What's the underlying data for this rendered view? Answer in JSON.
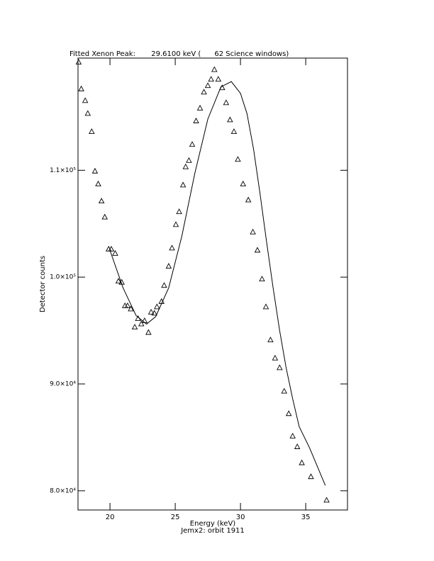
{
  "chart_data": {
    "type": "scatter",
    "title": "Fitted Xenon Peak:       29.6100 keV (      62 Science windows)",
    "x_label": "Energy (keV)",
    "subtitle": "Jemx2: orbit 1911",
    "y_label": "Detector counts",
    "xlim": [
      17.55,
      38.2
    ],
    "ylim": [
      78200,
      120500
    ],
    "xticks": [
      20,
      25,
      30,
      35
    ],
    "yticks": [
      {
        "value": 80000,
        "label": "8.0×10⁴"
      },
      {
        "value": 90000,
        "label": "9.0×10⁴"
      },
      {
        "value": 100000,
        "label": "1.0×10⁵"
      },
      {
        "value": 110000,
        "label": "1.1×10⁵"
      }
    ],
    "color": "#000000",
    "series": [
      {
        "mode": "markers",
        "x": [
          17.6,
          17.8,
          18.1,
          18.3,
          18.6,
          18.85,
          19.1,
          19.35,
          19.6,
          19.9,
          20.1,
          20.4,
          20.65,
          20.9,
          21.15,
          21.35,
          21.6,
          21.9,
          22.15,
          22.4,
          22.65,
          22.95,
          23.15,
          23.4,
          23.6,
          23.95,
          24.15,
          24.5,
          24.75,
          25.05,
          25.3,
          25.6,
          25.8,
          26.05,
          26.3,
          26.6,
          26.9,
          27.2,
          27.5,
          27.75,
          28.0,
          28.3,
          28.6,
          28.9,
          29.2,
          29.5,
          29.8,
          30.2,
          30.6,
          30.95,
          31.3,
          31.65,
          31.95,
          32.3,
          32.65,
          33.0,
          33.35,
          33.7,
          34.0,
          34.35,
          34.7,
          35.4,
          36.6
        ],
        "values": [
          120100,
          117600,
          116500,
          115300,
          113600,
          109900,
          108700,
          107100,
          105600,
          102600,
          102600,
          102200,
          99600,
          99500,
          97300,
          97300,
          97000,
          95300,
          96100,
          95600,
          95900,
          94800,
          96700,
          96600,
          97200,
          97700,
          99200,
          101000,
          102700,
          104900,
          106100,
          108600,
          110300,
          110900,
          112400,
          114600,
          115800,
          117300,
          117900,
          118500,
          119400,
          118500,
          117700,
          116300,
          114700,
          113600,
          111000,
          108700,
          107200,
          104200,
          102500,
          99800,
          97200,
          94100,
          92400,
          91500,
          89300,
          87200,
          85100,
          84100,
          82600,
          81300,
          79100
        ]
      },
      {
        "mode": "line",
        "x": [
          20,
          21,
          22,
          22.8,
          23.5,
          24.5,
          25.5,
          26.5,
          27.5,
          28.5,
          29.3,
          30,
          30.5,
          31,
          31.5,
          32,
          32.5,
          33,
          33.5,
          34,
          34.5,
          35.3,
          36.5
        ],
        "values": [
          102500,
          99000,
          96400,
          95600,
          96300,
          99000,
          103800,
          109700,
          114800,
          117800,
          118300,
          117200,
          115300,
          112000,
          107800,
          103300,
          99000,
          95000,
          91500,
          88600,
          86000,
          84000,
          80500
        ]
      }
    ]
  }
}
